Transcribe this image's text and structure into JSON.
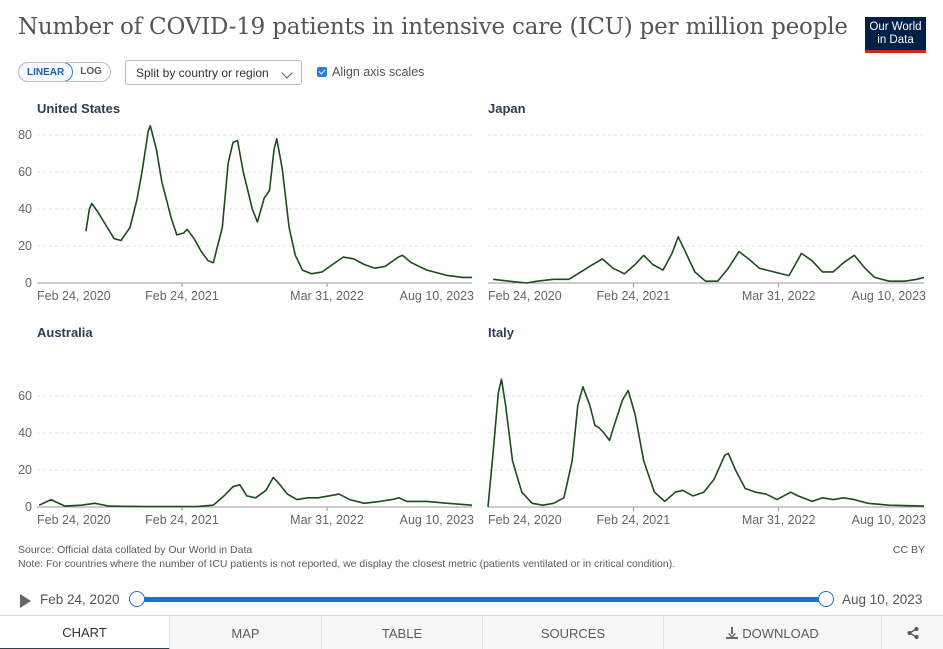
{
  "header": {
    "title": "Number of COVID-19 patients in intensive care (ICU) per million people",
    "logo_line1": "Our World",
    "logo_line2": "in Data"
  },
  "controls": {
    "linear_label": "LINEAR",
    "log_label": "LOG",
    "active_scale": "linear",
    "split_label": "Split by country or region",
    "align_label": "Align axis scales",
    "align_checked": true
  },
  "chart_data": [
    {
      "type": "line",
      "title": "United States",
      "color": "#1b4d1b",
      "x_ticks": [
        "Feb 24, 2020",
        "Feb 24, 2021",
        "Mar 31, 2022",
        "Aug 10, 2023"
      ],
      "y_ticks": [
        0,
        20,
        40,
        60,
        80
      ],
      "ylim": [
        0,
        80
      ],
      "xlim": [
        "2020-02-24",
        "2023-08-10"
      ],
      "points": [
        [
          "2020-07-15",
          28
        ],
        [
          "2020-07-25",
          40
        ],
        [
          "2020-08-01",
          43
        ],
        [
          "2020-08-20",
          38
        ],
        [
          "2020-09-15",
          30
        ],
        [
          "2020-10-05",
          24
        ],
        [
          "2020-10-25",
          23
        ],
        [
          "2020-11-20",
          30
        ],
        [
          "2020-12-10",
          45
        ],
        [
          "2020-12-25",
          60
        ],
        [
          "2021-01-12",
          82
        ],
        [
          "2021-01-18",
          85
        ],
        [
          "2021-02-05",
          72
        ],
        [
          "2021-02-20",
          55
        ],
        [
          "2021-03-20",
          35
        ],
        [
          "2021-04-05",
          26
        ],
        [
          "2021-04-25",
          27
        ],
        [
          "2021-05-05",
          29
        ],
        [
          "2021-05-25",
          24
        ],
        [
          "2021-06-15",
          17
        ],
        [
          "2021-07-05",
          12
        ],
        [
          "2021-07-20",
          11
        ],
        [
          "2021-08-15",
          30
        ],
        [
          "2021-09-01",
          65
        ],
        [
          "2021-09-15",
          76
        ],
        [
          "2021-09-28",
          77
        ],
        [
          "2021-10-15",
          60
        ],
        [
          "2021-11-10",
          40
        ],
        [
          "2021-11-25",
          33
        ],
        [
          "2021-12-15",
          46
        ],
        [
          "2021-12-30",
          50
        ],
        [
          "2022-01-12",
          72
        ],
        [
          "2022-01-20",
          78
        ],
        [
          "2022-02-05",
          62
        ],
        [
          "2022-02-25",
          30
        ],
        [
          "2022-03-15",
          15
        ],
        [
          "2022-04-05",
          7
        ],
        [
          "2022-05-01",
          5
        ],
        [
          "2022-06-01",
          6
        ],
        [
          "2022-07-01",
          10
        ],
        [
          "2022-08-01",
          14
        ],
        [
          "2022-09-01",
          13
        ],
        [
          "2022-10-01",
          10
        ],
        [
          "2022-11-01",
          8
        ],
        [
          "2022-12-01",
          9
        ],
        [
          "2023-01-08",
          14
        ],
        [
          "2023-01-20",
          15
        ],
        [
          "2023-02-15",
          11
        ],
        [
          "2023-04-01",
          7
        ],
        [
          "2023-06-01",
          4
        ],
        [
          "2023-07-15",
          3
        ],
        [
          "2023-08-10",
          3
        ]
      ]
    },
    {
      "type": "line",
      "title": "Japan",
      "color": "#1b4d1b",
      "x_ticks": [
        "Feb 24, 2020",
        "Feb 24, 2021",
        "Mar 31, 2022",
        "Aug 10, 2023"
      ],
      "y_ticks": [
        0,
        20,
        40,
        60,
        80
      ],
      "ylim": [
        0,
        80
      ],
      "xlim": [
        "2020-02-24",
        "2023-08-10"
      ],
      "points": [
        [
          "2020-03-10",
          2
        ],
        [
          "2020-04-25",
          1
        ],
        [
          "2020-06-15",
          0
        ],
        [
          "2020-07-15",
          1
        ],
        [
          "2020-09-01",
          2
        ],
        [
          "2020-10-15",
          2
        ],
        [
          "2020-11-10",
          5
        ],
        [
          "2020-12-15",
          9
        ],
        [
          "2021-01-20",
          13
        ],
        [
          "2021-02-20",
          8
        ],
        [
          "2021-03-25",
          5
        ],
        [
          "2021-04-25",
          10
        ],
        [
          "2021-05-20",
          15
        ],
        [
          "2021-06-15",
          10
        ],
        [
          "2021-07-15",
          7
        ],
        [
          "2021-08-10",
          16
        ],
        [
          "2021-08-28",
          25
        ],
        [
          "2021-09-15",
          18
        ],
        [
          "2021-10-15",
          6
        ],
        [
          "2021-11-15",
          1
        ],
        [
          "2021-12-20",
          1
        ],
        [
          "2022-01-20",
          8
        ],
        [
          "2022-02-20",
          17
        ],
        [
          "2022-03-20",
          13
        ],
        [
          "2022-04-20",
          8
        ],
        [
          "2022-06-01",
          6
        ],
        [
          "2022-07-15",
          4
        ],
        [
          "2022-08-20",
          16
        ],
        [
          "2022-09-20",
          12
        ],
        [
          "2022-10-20",
          6
        ],
        [
          "2022-11-20",
          6
        ],
        [
          "2022-12-20",
          11
        ],
        [
          "2023-01-20",
          15
        ],
        [
          "2023-02-20",
          8
        ],
        [
          "2023-03-20",
          3
        ],
        [
          "2023-05-01",
          1
        ],
        [
          "2023-06-15",
          1
        ],
        [
          "2023-07-20",
          2
        ],
        [
          "2023-08-10",
          3
        ]
      ]
    },
    {
      "type": "line",
      "title": "Australia",
      "color": "#1b4d1b",
      "x_ticks": [
        "Feb 24, 2020",
        "Feb 24, 2021",
        "Mar 31, 2022",
        "Aug 10, 2023"
      ],
      "y_ticks": [
        0,
        20,
        40,
        60
      ],
      "ylim": [
        0,
        80
      ],
      "xlim": [
        "2020-02-24",
        "2023-08-10"
      ],
      "points": [
        [
          "2020-03-01",
          1
        ],
        [
          "2020-04-05",
          4
        ],
        [
          "2020-05-15",
          0.5
        ],
        [
          "2020-07-01",
          1
        ],
        [
          "2020-08-10",
          2
        ],
        [
          "2020-09-20",
          0.5
        ],
        [
          "2021-01-01",
          0.2
        ],
        [
          "2021-06-01",
          0.2
        ],
        [
          "2021-07-20",
          1
        ],
        [
          "2021-08-20",
          6
        ],
        [
          "2021-09-15",
          11
        ],
        [
          "2021-10-05",
          12
        ],
        [
          "2021-10-25",
          6
        ],
        [
          "2021-11-20",
          5
        ],
        [
          "2021-12-20",
          9
        ],
        [
          "2022-01-10",
          16
        ],
        [
          "2022-01-25",
          13
        ],
        [
          "2022-02-20",
          7
        ],
        [
          "2022-03-20",
          4
        ],
        [
          "2022-04-20",
          5
        ],
        [
          "2022-05-20",
          5
        ],
        [
          "2022-06-20",
          6
        ],
        [
          "2022-07-20",
          7
        ],
        [
          "2022-08-20",
          4
        ],
        [
          "2022-10-01",
          2
        ],
        [
          "2022-11-15",
          3
        ],
        [
          "2022-12-20",
          4
        ],
        [
          "2023-01-10",
          5
        ],
        [
          "2023-02-01",
          3
        ],
        [
          "2023-04-01",
          3
        ],
        [
          "2023-06-01",
          2
        ],
        [
          "2023-08-10",
          1
        ]
      ]
    },
    {
      "type": "line",
      "title": "Italy",
      "color": "#1b4d1b",
      "x_ticks": [
        "Feb 24, 2020",
        "Feb 24, 2021",
        "Mar 31, 2022",
        "Aug 10, 2023"
      ],
      "y_ticks": [
        0,
        20,
        40,
        60
      ],
      "ylim": [
        0,
        80
      ],
      "xlim": [
        "2020-02-24",
        "2023-08-10"
      ],
      "points": [
        [
          "2020-02-24",
          0
        ],
        [
          "2020-03-10",
          30
        ],
        [
          "2020-03-25",
          62
        ],
        [
          "2020-04-03",
          69
        ],
        [
          "2020-04-15",
          55
        ],
        [
          "2020-05-05",
          25
        ],
        [
          "2020-06-01",
          8
        ],
        [
          "2020-07-01",
          2
        ],
        [
          "2020-08-01",
          1
        ],
        [
          "2020-09-01",
          2
        ],
        [
          "2020-10-01",
          5
        ],
        [
          "2020-10-25",
          25
        ],
        [
          "2020-11-10",
          55
        ],
        [
          "2020-11-25",
          65
        ],
        [
          "2020-12-15",
          55
        ],
        [
          "2020-12-30",
          44
        ],
        [
          "2021-01-10",
          43
        ],
        [
          "2021-01-25",
          40
        ],
        [
          "2021-02-10",
          36
        ],
        [
          "2021-02-25",
          45
        ],
        [
          "2021-03-20",
          58
        ],
        [
          "2021-04-05",
          63
        ],
        [
          "2021-04-25",
          50
        ],
        [
          "2021-05-20",
          25
        ],
        [
          "2021-06-20",
          8
        ],
        [
          "2021-07-20",
          3
        ],
        [
          "2021-08-20",
          8
        ],
        [
          "2021-09-10",
          9
        ],
        [
          "2021-10-10",
          6
        ],
        [
          "2021-11-10",
          8
        ],
        [
          "2021-12-10",
          15
        ],
        [
          "2022-01-10",
          28
        ],
        [
          "2022-01-20",
          29
        ],
        [
          "2022-02-10",
          20
        ],
        [
          "2022-03-10",
          10
        ],
        [
          "2022-04-10",
          8
        ],
        [
          "2022-05-10",
          7
        ],
        [
          "2022-06-10",
          4
        ],
        [
          "2022-07-20",
          8
        ],
        [
          "2022-08-10",
          6
        ],
        [
          "2022-09-20",
          3
        ],
        [
          "2022-10-20",
          5
        ],
        [
          "2022-11-20",
          4
        ],
        [
          "2022-12-20",
          5
        ],
        [
          "2023-01-20",
          4
        ],
        [
          "2023-03-01",
          2
        ],
        [
          "2023-05-01",
          1
        ],
        [
          "2023-08-10",
          0.5
        ]
      ]
    }
  ],
  "footer": {
    "source": "Source: Official data collated by Our World in Data",
    "note": "Note: For countries where the number of ICU patients is not reported, we display the closest metric (patients ventilated or in critical condition).",
    "license": "CC BY"
  },
  "timeline": {
    "start_label": "Feb 24, 2020",
    "end_label": "Aug 10, 2023"
  },
  "tabs": {
    "chart": "CHART",
    "map": "MAP",
    "table": "TABLE",
    "sources": "SOURCES",
    "download": "DOWNLOAD"
  }
}
